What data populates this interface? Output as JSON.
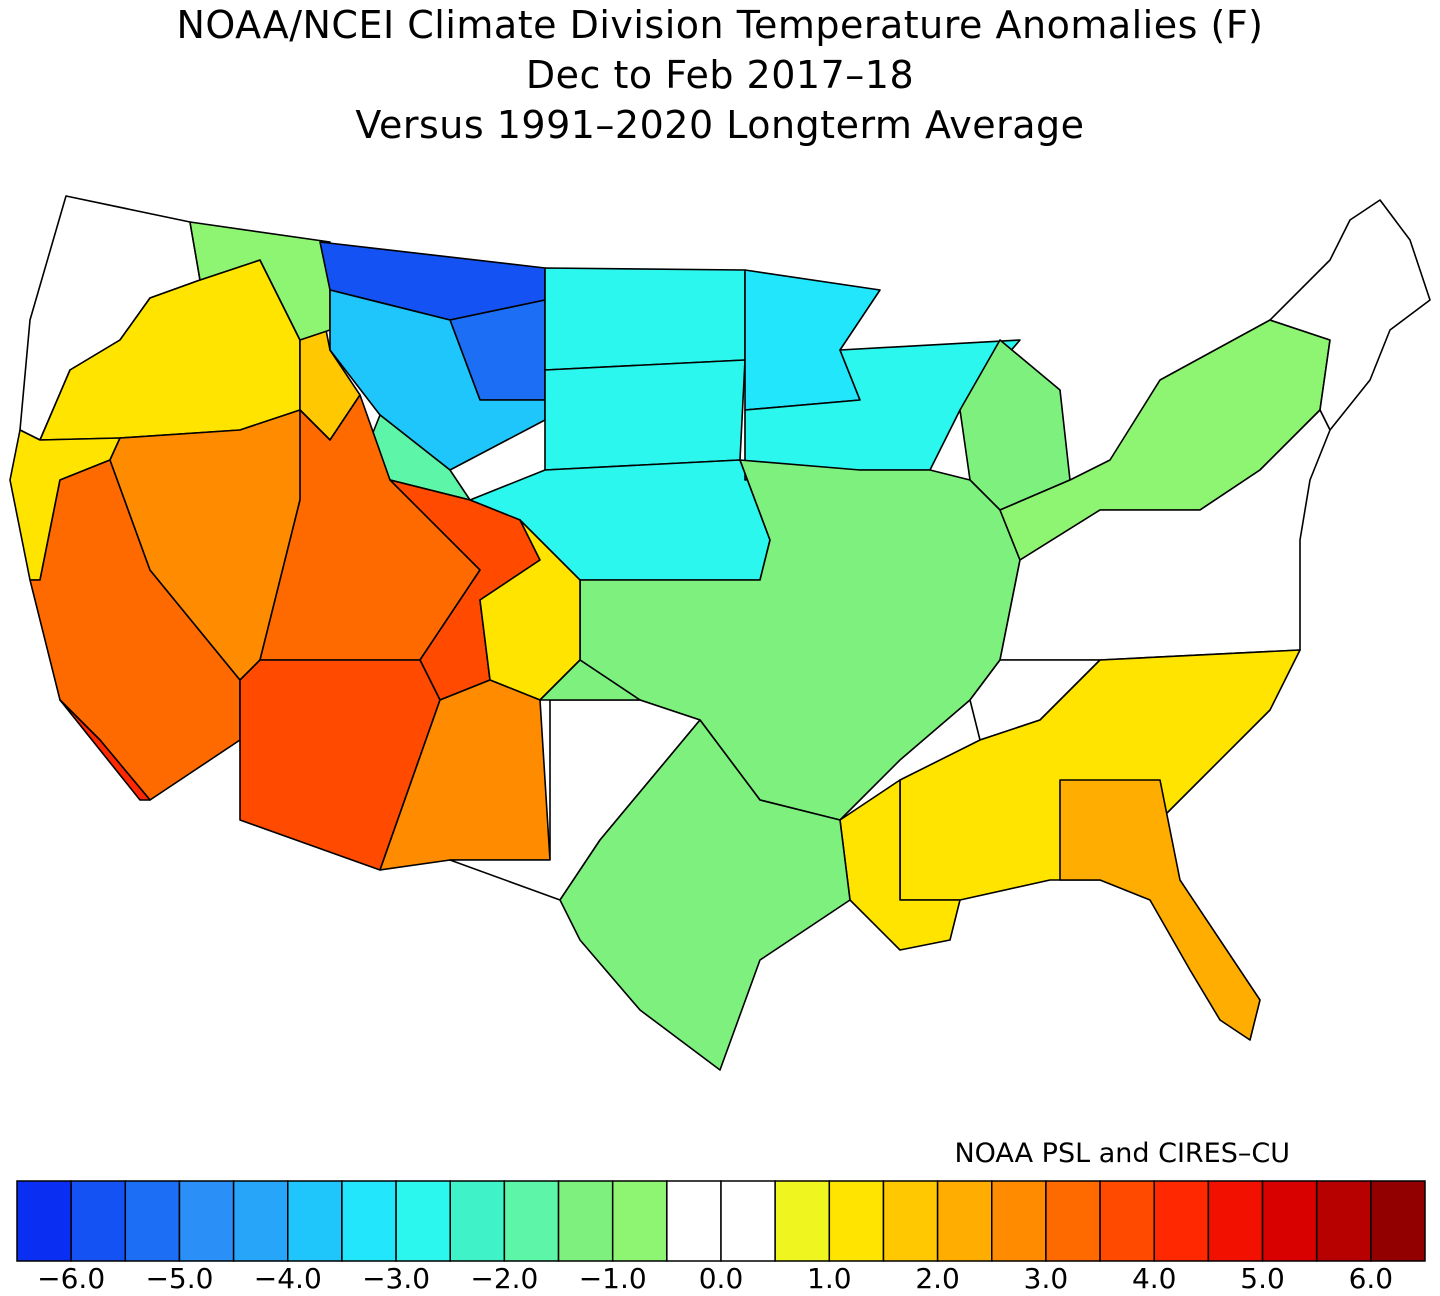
{
  "title": {
    "line1": "NOAA/NCEI Climate Division Temperature Anomalies (F)",
    "line2": "Dec to Feb 2017–18",
    "line3": "Versus 1991–2020 Longterm Average"
  },
  "credit": "NOAA PSL and CIRES–CU",
  "colorbar": {
    "colors": [
      "#0a2ef2",
      "#1552f3",
      "#1c6ff5",
      "#2a8ff6",
      "#27a6f9",
      "#1fc6fb",
      "#22e6fc",
      "#2cf7ee",
      "#3ff2c7",
      "#5df6a8",
      "#7ef07e",
      "#8ef572",
      "#ffffff",
      "#ffffff",
      "#eef51f",
      "#ffe400",
      "#ffc800",
      "#ffad00",
      "#ff8c00",
      "#ff6a00",
      "#ff4a00",
      "#ff2800",
      "#f21000",
      "#d90000",
      "#b70000",
      "#930000"
    ],
    "tick_labels": [
      "−6.0",
      "−5.0",
      "−4.0",
      "−3.0",
      "−2.0",
      "−1.0",
      "0.0",
      "1.0",
      "2.0",
      "3.0",
      "4.0",
      "5.0",
      "6.0"
    ]
  },
  "regions": [
    {
      "name": "pacific-northwest-coast",
      "anomaly": 0.0
    },
    {
      "name": "oregon-interior",
      "anomaly": 1.0
    },
    {
      "name": "idaho",
      "anomaly": 1.5
    },
    {
      "name": "western-montana",
      "anomaly": -1.0
    },
    {
      "name": "northern-montana",
      "anomaly": -6.0
    },
    {
      "name": "eastern-montana",
      "anomaly": -5.5
    },
    {
      "name": "central-montana-wyoming",
      "anomaly": -4.0
    },
    {
      "name": "western-wyoming",
      "anomaly": -2.0
    },
    {
      "name": "north-dakota",
      "anomaly": -3.0
    },
    {
      "name": "south-dakota",
      "anomaly": -3.0
    },
    {
      "name": "nebraska",
      "anomaly": -3.0
    },
    {
      "name": "minnesota",
      "anomaly": -3.5
    },
    {
      "name": "wisconsin",
      "anomaly": -3.0
    },
    {
      "name": "michigan",
      "anomaly": -1.5
    },
    {
      "name": "midwest-plains",
      "anomaly": -1.5
    },
    {
      "name": "great-lakes-northeast",
      "anomaly": -1.0
    },
    {
      "name": "new-england",
      "anomaly": 0.0
    },
    {
      "name": "mid-atlantic",
      "anomaly": 0.0
    },
    {
      "name": "southeast",
      "anomaly": 1.0
    },
    {
      "name": "georgia-florida",
      "anomaly": 2.0
    },
    {
      "name": "north-california",
      "anomaly": 1.0
    },
    {
      "name": "california",
      "anomaly": 3.0
    },
    {
      "name": "southern-california",
      "anomaly": 4.0
    },
    {
      "name": "nevada",
      "anomaly": 2.5
    },
    {
      "name": "utah",
      "anomaly": 3.0
    },
    {
      "name": "arizona",
      "anomaly": 3.5
    },
    {
      "name": "new-mexico",
      "anomaly": 2.5
    },
    {
      "name": "colorado-west",
      "anomaly": 3.5
    },
    {
      "name": "colorado-east",
      "anomaly": 1.0
    },
    {
      "name": "oklahoma-kansas",
      "anomaly": -1.5
    },
    {
      "name": "texas",
      "anomaly": -1.5
    },
    {
      "name": "west-texas",
      "anomaly": 0.0
    },
    {
      "name": "gulf-coast",
      "anomaly": 1.0
    },
    {
      "name": "tennessee-area",
      "anomaly": 0.0
    }
  ]
}
